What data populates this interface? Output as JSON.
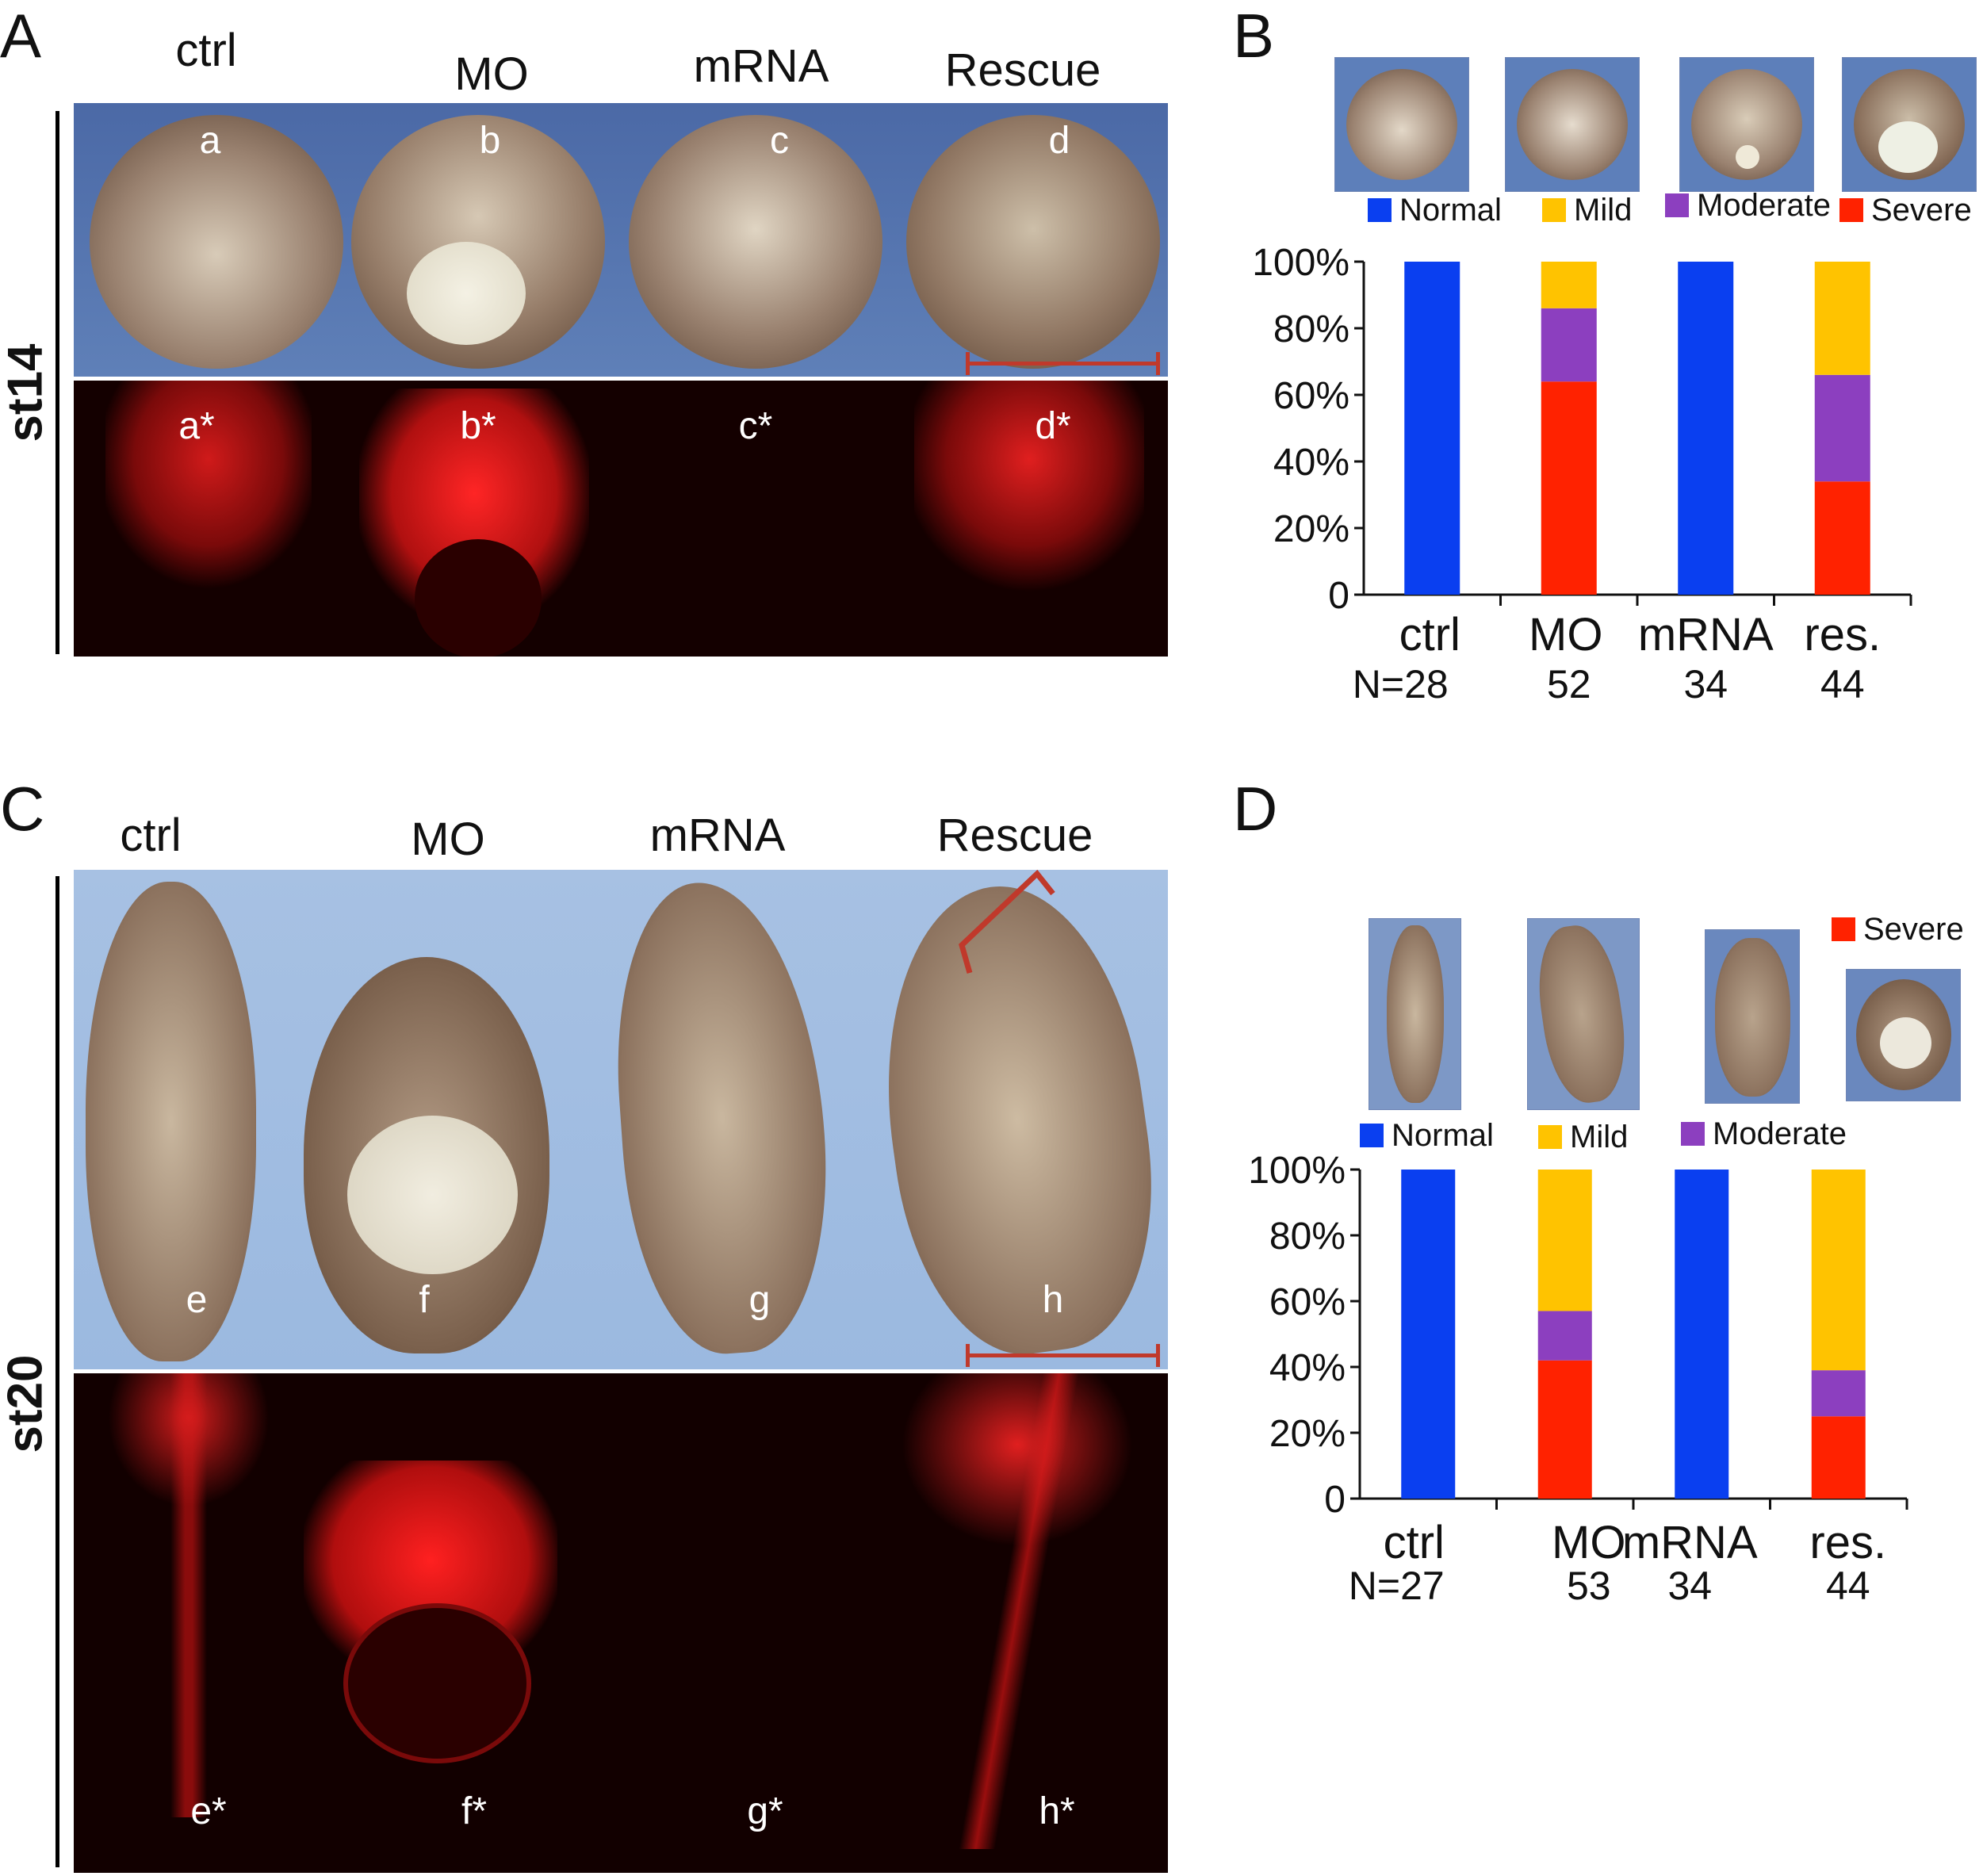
{
  "panels": {
    "A": {
      "letter": "A",
      "stage": "st14",
      "columns": [
        "ctrl",
        "MO",
        "mRNA",
        "Rescue"
      ],
      "top_tags": [
        "a",
        "b",
        "c",
        "d"
      ],
      "bottom_tags": [
        "a*",
        "b*",
        "c*",
        "d*"
      ]
    },
    "B": {
      "letter": "B"
    },
    "C": {
      "letter": "C",
      "stage": "st20",
      "columns": [
        "ctrl",
        "MO",
        "mRNA",
        "Rescue"
      ],
      "top_tags": [
        "e",
        "f",
        "g",
        "h"
      ],
      "bottom_tags": [
        "e*",
        "f*",
        "g*",
        "h*"
      ]
    },
    "D": {
      "letter": "D"
    }
  },
  "colors": {
    "Normal": "#0a3ff0",
    "Mild": "#ffc300",
    "Moderate": "#8c3fbf",
    "Severe": "#ff2200",
    "scale": "#c0392b"
  },
  "chart_data": [
    {
      "panel": "B",
      "type": "bar",
      "stacked": true,
      "categories": [
        "ctrl",
        "MO",
        "mRNA",
        "res."
      ],
      "n_labels": [
        "N=28",
        "52",
        "34",
        "44"
      ],
      "ylim": [
        0,
        100
      ],
      "yticks": [
        "0",
        "20%",
        "40%",
        "60%",
        "80%",
        "100%"
      ],
      "legend": [
        "Normal",
        "Mild",
        "Moderate",
        "Severe"
      ],
      "series": [
        {
          "name": "Severe",
          "values": [
            0,
            64,
            0,
            34
          ]
        },
        {
          "name": "Moderate",
          "values": [
            0,
            22,
            0,
            32
          ]
        },
        {
          "name": "Mild",
          "values": [
            0,
            14,
            0,
            34
          ]
        },
        {
          "name": "Normal",
          "values": [
            100,
            0,
            100,
            0
          ]
        }
      ]
    },
    {
      "panel": "D",
      "type": "bar",
      "stacked": true,
      "categories": [
        "ctrl",
        "MO",
        "mRNA",
        "res."
      ],
      "n_labels": [
        "N=27",
        "53",
        "34",
        "44"
      ],
      "ylim": [
        0,
        100
      ],
      "yticks": [
        "0",
        "20%",
        "40%",
        "60%",
        "80%",
        "100%"
      ],
      "legend": [
        "Normal",
        "Mild",
        "Moderate",
        "Severe"
      ],
      "series": [
        {
          "name": "Severe",
          "values": [
            0,
            42,
            0,
            25
          ]
        },
        {
          "name": "Moderate",
          "values": [
            0,
            15,
            0,
            14
          ]
        },
        {
          "name": "Mild",
          "values": [
            0,
            43,
            0,
            61
          ]
        },
        {
          "name": "Normal",
          "values": [
            100,
            0,
            100,
            0
          ]
        }
      ]
    }
  ]
}
